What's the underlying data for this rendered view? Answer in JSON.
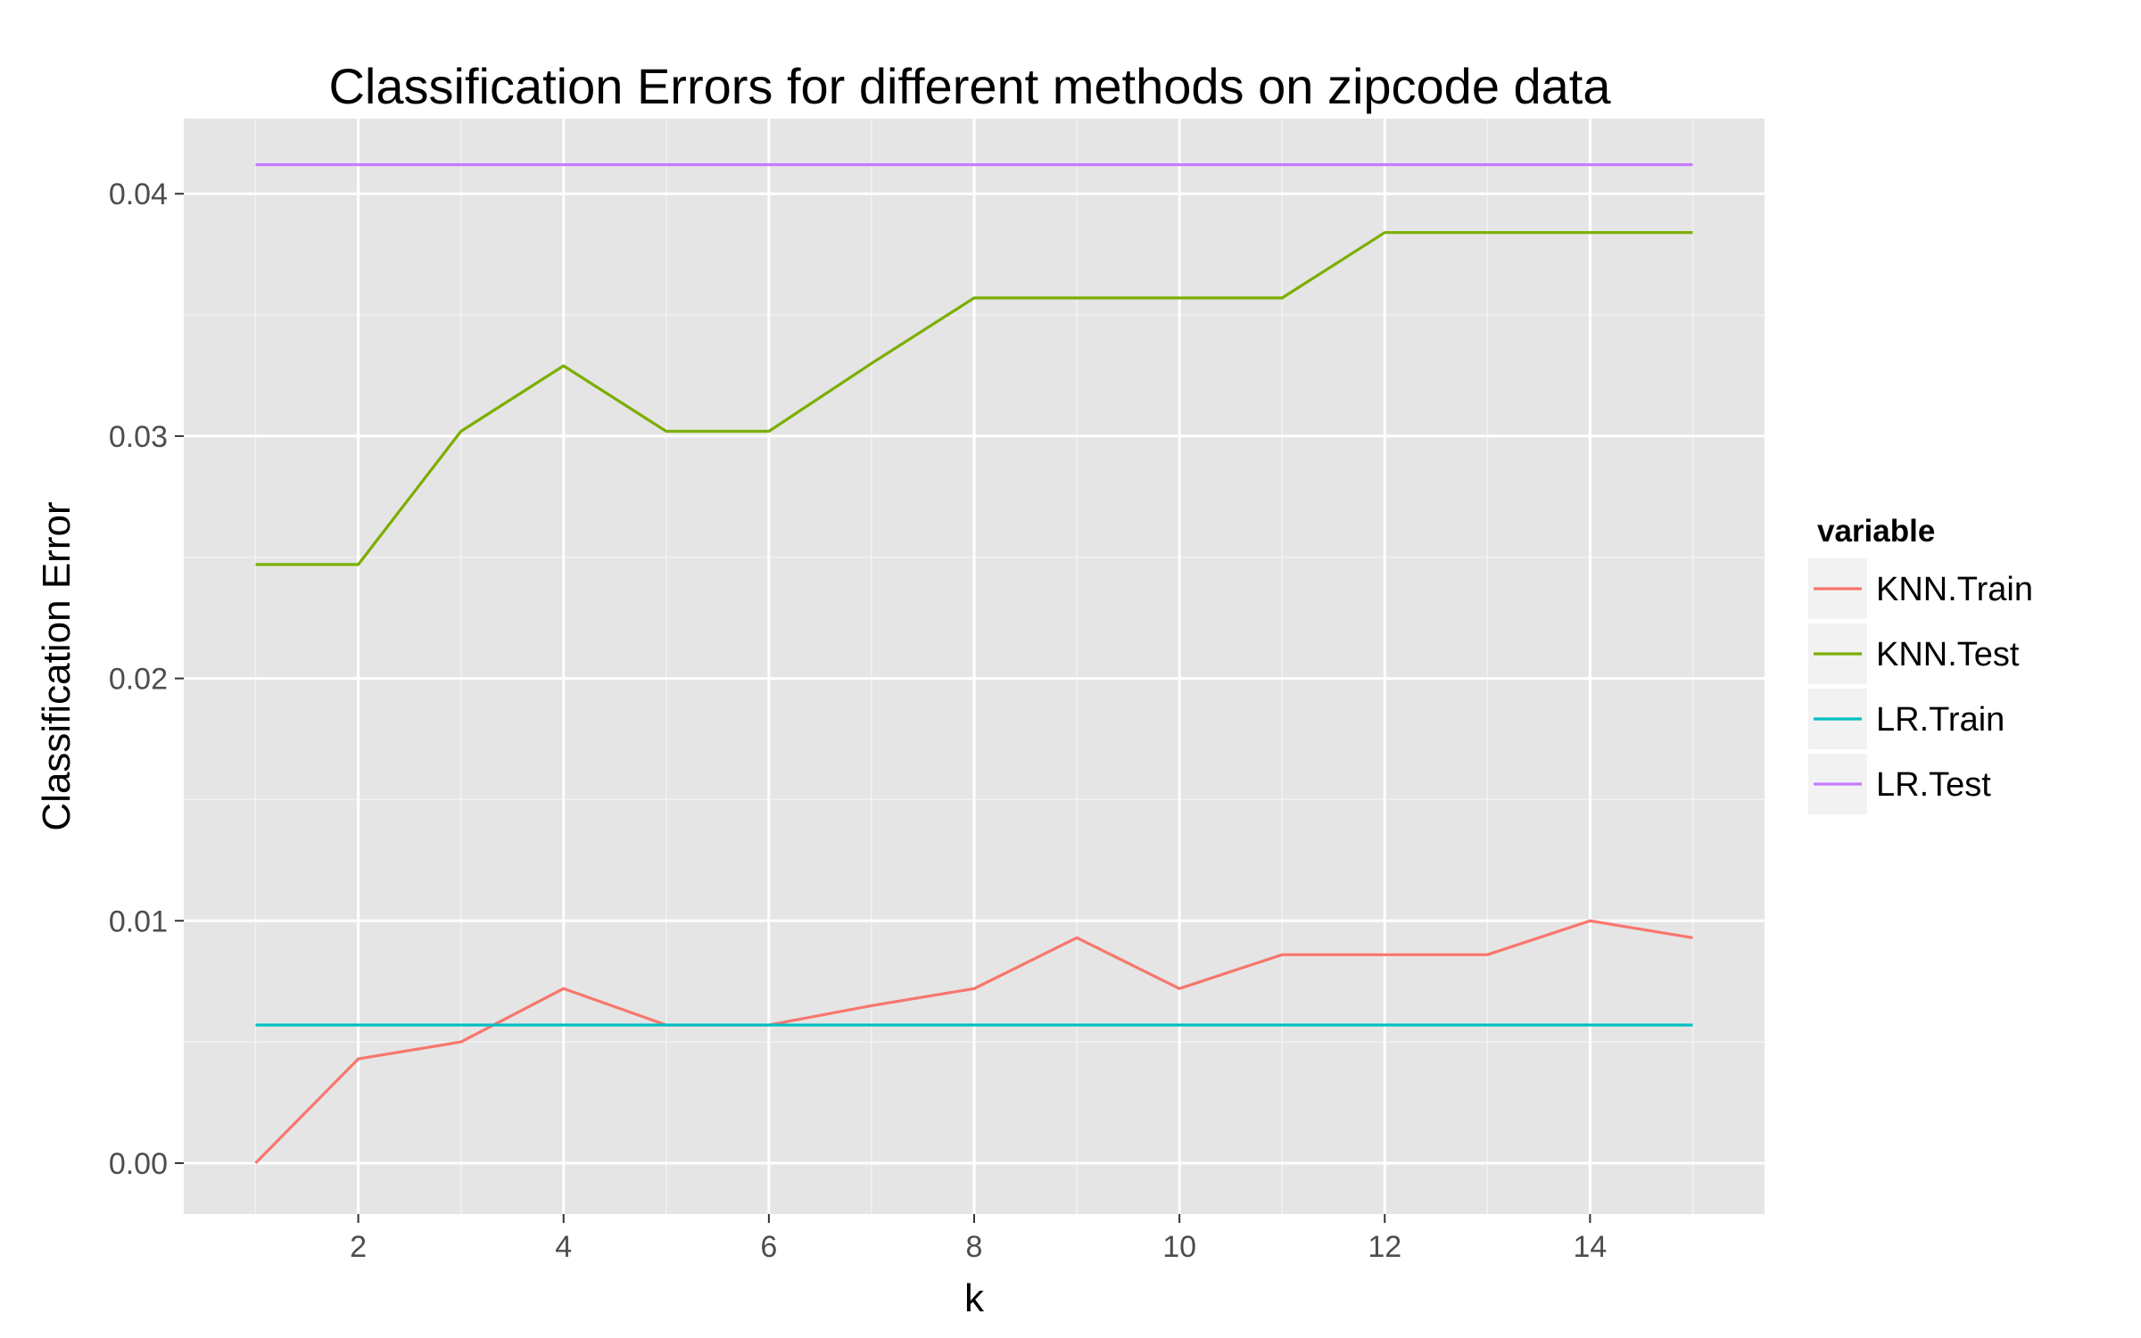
{
  "chart_data": {
    "type": "line",
    "title": "Classification Errors for different methods on zipcode data",
    "xlabel": "k",
    "ylabel": "Classification Error",
    "xlim": [
      0.3,
      15.7
    ],
    "ylim": [
      -0.0021,
      0.0431
    ],
    "x_ticks": [
      2,
      4,
      6,
      8,
      10,
      12,
      14
    ],
    "x_tick_labels": [
      "2",
      "4",
      "6",
      "8",
      "10",
      "12",
      "14"
    ],
    "y_ticks": [
      0.0,
      0.01,
      0.02,
      0.03,
      0.04
    ],
    "y_tick_labels": [
      "0.00",
      "0.01",
      "0.02",
      "0.03",
      "0.04"
    ],
    "grid": true,
    "legend": {
      "title": "variable",
      "position": "right"
    },
    "x": [
      1,
      2,
      3,
      4,
      5,
      6,
      7,
      8,
      9,
      10,
      11,
      12,
      13,
      14,
      15
    ],
    "series": [
      {
        "name": "KNN.Train",
        "color": "#F8766D",
        "values": [
          0.0,
          0.0043,
          0.005,
          0.0072,
          0.0057,
          0.0057,
          0.0065,
          0.0072,
          0.0093,
          0.0072,
          0.0086,
          0.0086,
          0.0086,
          0.01,
          0.0093
        ]
      },
      {
        "name": "KNN.Test",
        "color": "#7CAE00",
        "values": [
          0.0247,
          0.0247,
          0.0302,
          0.0329,
          0.0302,
          0.0302,
          0.033,
          0.0357,
          0.0357,
          0.0357,
          0.0357,
          0.0384,
          0.0384,
          0.0384,
          0.0384
        ]
      },
      {
        "name": "LR.Train",
        "color": "#00BFC4",
        "values": [
          0.0057,
          0.0057,
          0.0057,
          0.0057,
          0.0057,
          0.0057,
          0.0057,
          0.0057,
          0.0057,
          0.0057,
          0.0057,
          0.0057,
          0.0057,
          0.0057,
          0.0057
        ]
      },
      {
        "name": "LR.Test",
        "color": "#C77CFF",
        "values": [
          0.0412,
          0.0412,
          0.0412,
          0.0412,
          0.0412,
          0.0412,
          0.0412,
          0.0412,
          0.0412,
          0.0412,
          0.0412,
          0.0412,
          0.0412,
          0.0412,
          0.0412
        ]
      }
    ],
    "panel_color": "#E5E5E5",
    "grid_major_color": "#FFFFFF",
    "grid_minor_color": "#F2F2F2",
    "legend_key_color": "#F2F2F2"
  }
}
